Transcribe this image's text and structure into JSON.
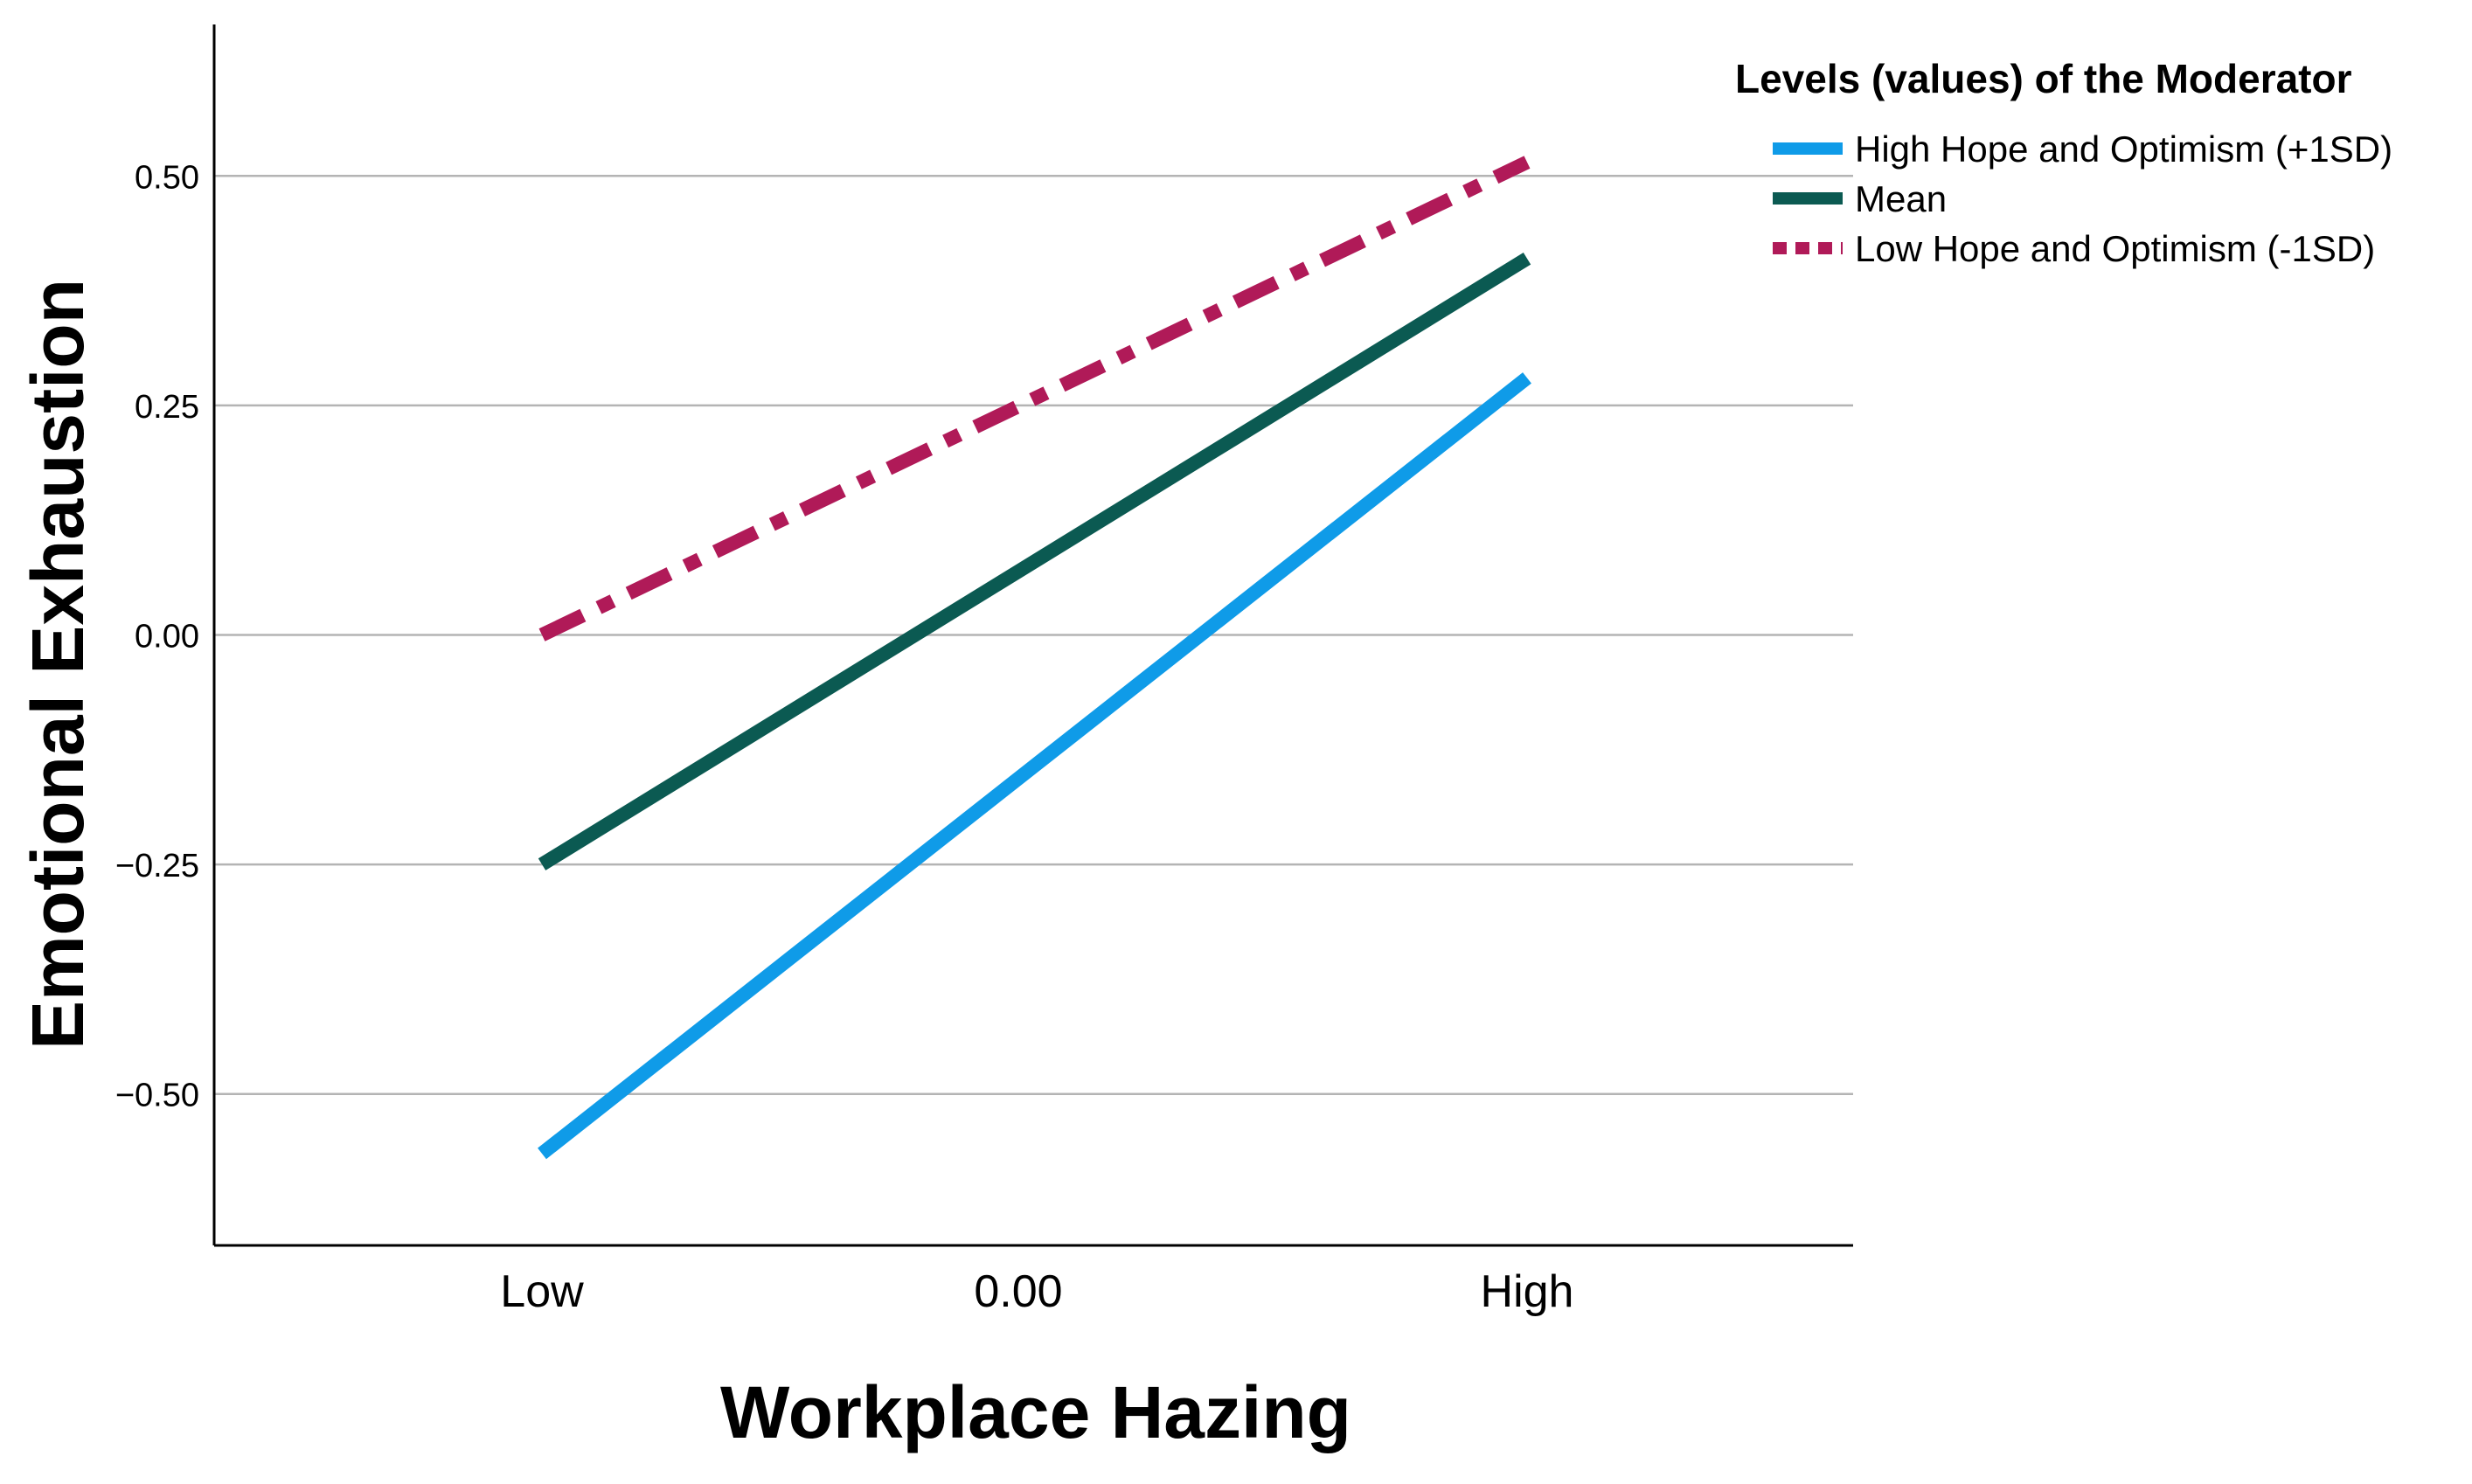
{
  "chart_data": {
    "type": "line",
    "xlabel": "Workplace Hazing",
    "ylabel": "Emotional Exhaustion",
    "x_tick_labels": [
      "Low",
      "0.00",
      "High"
    ],
    "y_ticks": [
      -0.5,
      -0.25,
      0.0,
      0.25,
      0.5
    ],
    "y_tick_labels": [
      "−0.50",
      "−0.25",
      "0.00",
      "0.25",
      "0.50"
    ],
    "ylim": [
      -0.665,
      0.665
    ],
    "grid": true,
    "legend": {
      "title": "Levels (values) of the Moderator",
      "placement": "top-right"
    },
    "series": [
      {
        "name": "High Hope and Optimism (+1SD)",
        "color": "#0f9be8",
        "style": "solid",
        "x": [
          "Low",
          "High"
        ],
        "values": [
          -0.565,
          0.28
        ]
      },
      {
        "name": "Mean",
        "color": "#0b5a52",
        "style": "solid",
        "x": [
          "Low",
          "High"
        ],
        "values": [
          -0.25,
          0.41
        ]
      },
      {
        "name": "Low Hope and Optimism (-1SD)",
        "color": "#b01a58",
        "style": "dashdot",
        "x": [
          "Low",
          "High"
        ],
        "values": [
          0.0,
          0.515
        ]
      }
    ]
  }
}
